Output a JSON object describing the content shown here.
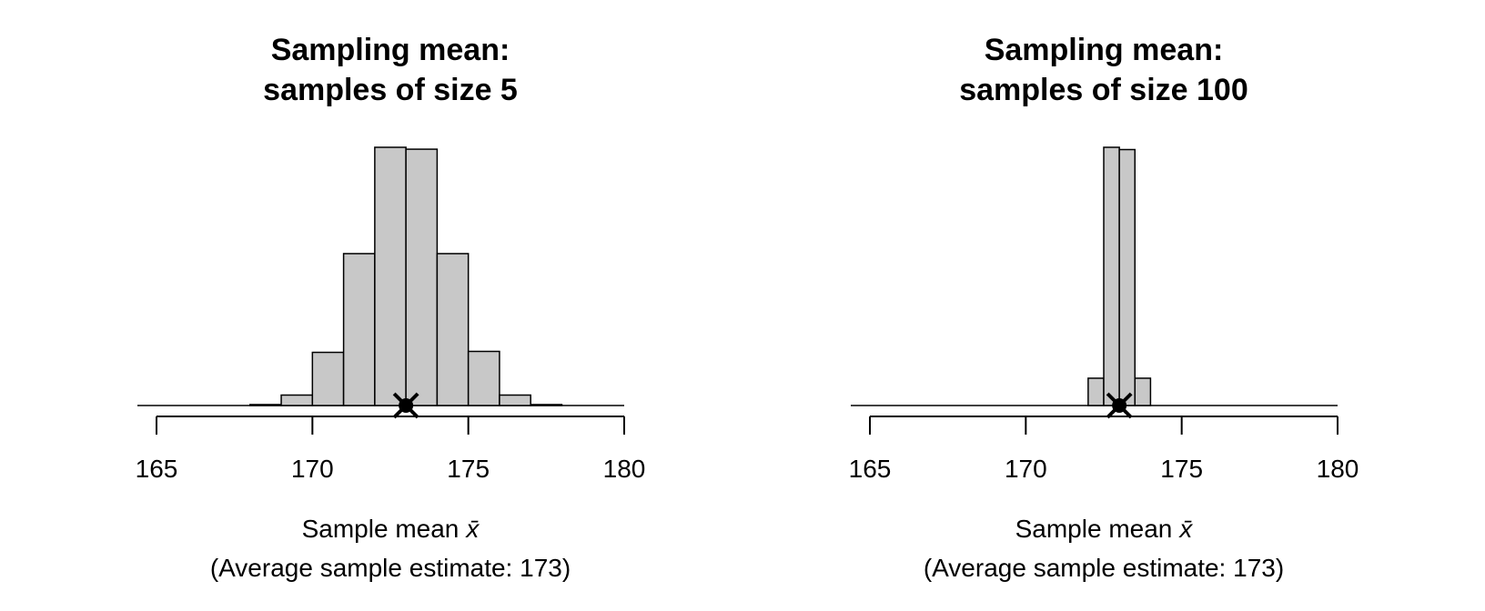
{
  "chart_data": [
    {
      "type": "histogram",
      "title": [
        "Sampling mean:",
        "samples of size 5"
      ],
      "bins": [
        168,
        169,
        170,
        171,
        172,
        173,
        174,
        175,
        176,
        177,
        178
      ],
      "values": [
        0.001,
        0.011,
        0.056,
        0.16,
        0.272,
        0.27,
        0.16,
        0.057,
        0.011,
        0.001
      ],
      "color": "#c8c8c8",
      "ylim": [
        0,
        0.272
      ],
      "xlim": [
        165,
        180
      ],
      "xticks": [
        165,
        170,
        175,
        180
      ],
      "xlabel": "Sample mean",
      "xlabel_symbol": "x̄",
      "note": "(Average sample estimate: 173)",
      "mean": 173
    },
    {
      "type": "histogram",
      "title": [
        "Sampling mean:",
        "samples of size 100"
      ],
      "bins": [
        172,
        172.5,
        173,
        173.5,
        174
      ],
      "values": [
        0.048,
        0.454,
        0.45,
        0.048
      ],
      "color": "#c8c8c8",
      "ylim": [
        0,
        0.454
      ],
      "xlim": [
        165,
        180
      ],
      "xticks": [
        165,
        170,
        175,
        180
      ],
      "xlabel": "Sample mean",
      "xlabel_symbol": "x̄",
      "note": "(Average sample estimate: 173)",
      "mean": 173
    }
  ]
}
